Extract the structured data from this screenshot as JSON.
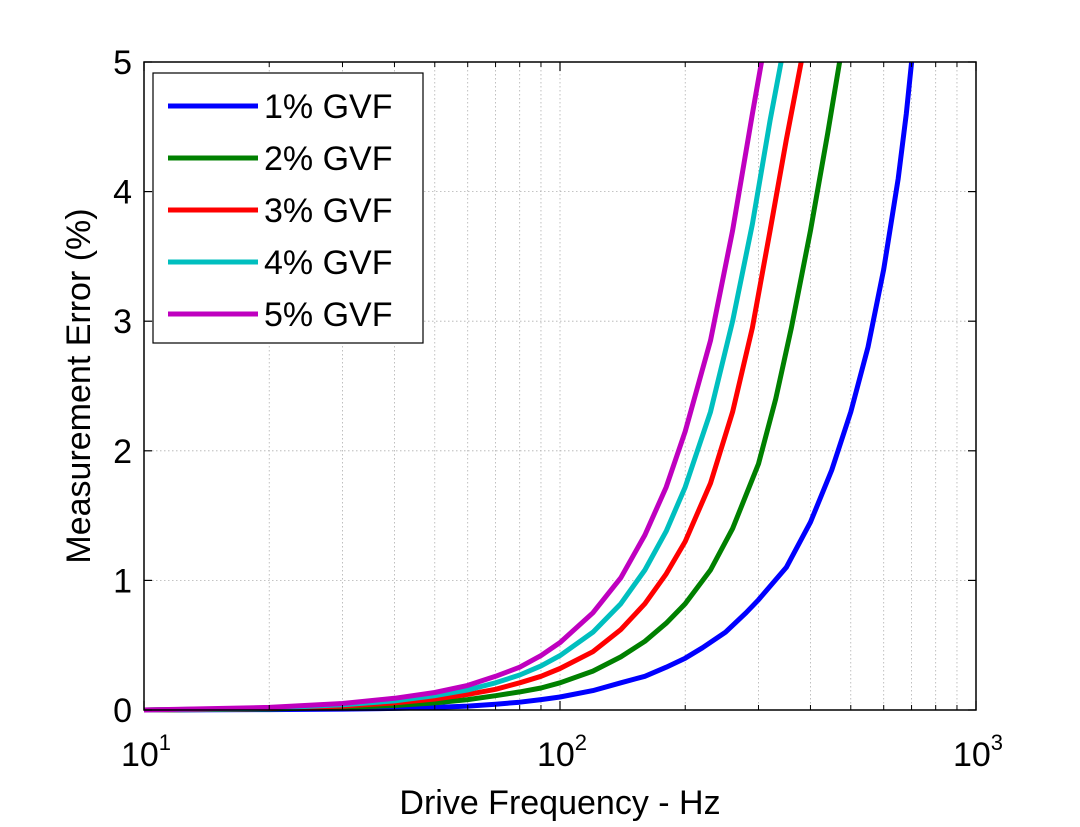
{
  "chart_data": {
    "type": "line",
    "title": "",
    "xlabel": "Drive Frequency - Hz",
    "ylabel": "Measurement Error (%)",
    "x_scale": "log",
    "xlim": [
      10,
      1000
    ],
    "ylim": [
      0,
      5
    ],
    "x_ticks": [
      {
        "value": 10,
        "base": "10",
        "exp": "1"
      },
      {
        "value": 100,
        "base": "10",
        "exp": "2"
      },
      {
        "value": 1000,
        "base": "10",
        "exp": "3"
      }
    ],
    "y_ticks": [
      "0",
      "1",
      "2",
      "3",
      "4",
      "5"
    ],
    "grid": true,
    "legend_position": "top-left",
    "series": [
      {
        "name": "1% GVF",
        "color": "#0000ff",
        "points": [
          [
            10,
            0
          ],
          [
            20,
            0.003
          ],
          [
            30,
            0.007
          ],
          [
            40,
            0.012
          ],
          [
            50,
            0.02
          ],
          [
            60,
            0.03
          ],
          [
            70,
            0.045
          ],
          [
            80,
            0.06
          ],
          [
            90,
            0.08
          ],
          [
            100,
            0.1
          ],
          [
            120,
            0.15
          ],
          [
            140,
            0.21
          ],
          [
            160,
            0.26
          ],
          [
            180,
            0.33
          ],
          [
            200,
            0.4
          ],
          [
            220,
            0.48
          ],
          [
            250,
            0.6
          ],
          [
            280,
            0.75
          ],
          [
            300,
            0.85
          ],
          [
            350,
            1.1
          ],
          [
            400,
            1.45
          ],
          [
            450,
            1.85
          ],
          [
            500,
            2.3
          ],
          [
            550,
            2.8
          ],
          [
            600,
            3.4
          ],
          [
            650,
            4.1
          ],
          [
            680,
            4.6
          ],
          [
            700,
            5.0
          ]
        ]
      },
      {
        "name": "2% GVF",
        "color": "#008000",
        "points": [
          [
            10,
            0
          ],
          [
            20,
            0.008
          ],
          [
            30,
            0.02
          ],
          [
            40,
            0.035
          ],
          [
            50,
            0.055
          ],
          [
            60,
            0.08
          ],
          [
            70,
            0.11
          ],
          [
            80,
            0.14
          ],
          [
            90,
            0.17
          ],
          [
            100,
            0.21
          ],
          [
            120,
            0.3
          ],
          [
            140,
            0.41
          ],
          [
            160,
            0.53
          ],
          [
            180,
            0.67
          ],
          [
            200,
            0.82
          ],
          [
            230,
            1.08
          ],
          [
            260,
            1.4
          ],
          [
            300,
            1.9
          ],
          [
            330,
            2.4
          ],
          [
            360,
            2.95
          ],
          [
            400,
            3.7
          ],
          [
            440,
            4.45
          ],
          [
            470,
            5.0
          ]
        ]
      },
      {
        "name": "3% GVF",
        "color": "#ff0000",
        "points": [
          [
            10,
            0
          ],
          [
            20,
            0.012
          ],
          [
            30,
            0.03
          ],
          [
            40,
            0.055
          ],
          [
            50,
            0.085
          ],
          [
            60,
            0.12
          ],
          [
            70,
            0.16
          ],
          [
            80,
            0.21
          ],
          [
            90,
            0.26
          ],
          [
            100,
            0.32
          ],
          [
            120,
            0.45
          ],
          [
            140,
            0.62
          ],
          [
            160,
            0.82
          ],
          [
            180,
            1.05
          ],
          [
            200,
            1.3
          ],
          [
            230,
            1.75
          ],
          [
            260,
            2.3
          ],
          [
            290,
            2.95
          ],
          [
            320,
            3.7
          ],
          [
            350,
            4.4
          ],
          [
            380,
            5.0
          ]
        ]
      },
      {
        "name": "4% GVF",
        "color": "#00bfbf",
        "points": [
          [
            10,
            0
          ],
          [
            20,
            0.015
          ],
          [
            30,
            0.04
          ],
          [
            40,
            0.07
          ],
          [
            50,
            0.11
          ],
          [
            60,
            0.155
          ],
          [
            70,
            0.21
          ],
          [
            80,
            0.27
          ],
          [
            90,
            0.34
          ],
          [
            100,
            0.42
          ],
          [
            120,
            0.6
          ],
          [
            140,
            0.82
          ],
          [
            160,
            1.08
          ],
          [
            180,
            1.38
          ],
          [
            200,
            1.72
          ],
          [
            230,
            2.3
          ],
          [
            260,
            3.0
          ],
          [
            290,
            3.75
          ],
          [
            320,
            4.55
          ],
          [
            340,
            5.0
          ]
        ]
      },
      {
        "name": "5% GVF",
        "color": "#bf00bf",
        "points": [
          [
            10,
            0
          ],
          [
            20,
            0.02
          ],
          [
            30,
            0.05
          ],
          [
            40,
            0.09
          ],
          [
            50,
            0.135
          ],
          [
            60,
            0.19
          ],
          [
            70,
            0.26
          ],
          [
            80,
            0.33
          ],
          [
            90,
            0.42
          ],
          [
            100,
            0.52
          ],
          [
            120,
            0.75
          ],
          [
            140,
            1.02
          ],
          [
            160,
            1.35
          ],
          [
            180,
            1.72
          ],
          [
            200,
            2.15
          ],
          [
            230,
            2.85
          ],
          [
            260,
            3.7
          ],
          [
            290,
            4.6
          ],
          [
            305,
            5.0
          ]
        ]
      }
    ]
  }
}
